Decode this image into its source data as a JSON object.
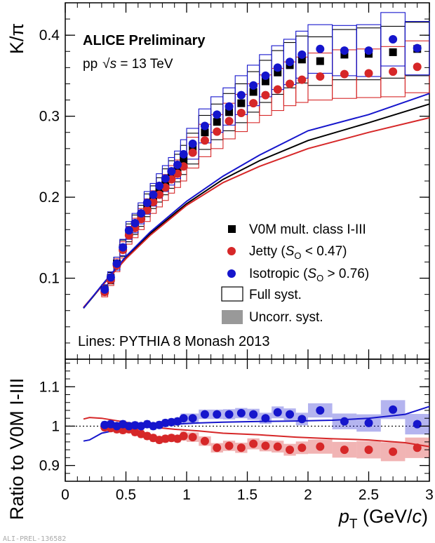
{
  "chart_data": [
    {
      "type": "scatter",
      "ylabel": "K/π",
      "xlim": [
        0,
        3
      ],
      "ylim": [
        0,
        0.44
      ],
      "y_ticks": [
        "0.1",
        "0.2",
        "0.3",
        "0.4"
      ],
      "annotations": {
        "title": "ALICE Preliminary",
        "energy_prefix": "pp",
        "energy_sym": "√",
        "energy_s": "s",
        "energy_value": " = 13 TeV",
        "lines_note": "Lines: PYTHIA 8 Monash 2013"
      },
      "legend": {
        "v0m": "V0M mult. class I-III",
        "jetty_a": "Jetty (",
        "jetty_s": "S",
        "jetty_sub": "O",
        "jetty_b": " < 0.47)",
        "iso_a": "Isotropic (",
        "iso_s": "S",
        "iso_sub": "O",
        "iso_b": " > 0.76)",
        "full_syst": "Full syst.",
        "uncorr_syst": "Uncorr. syst."
      },
      "colors": {
        "v0m": "#000000",
        "jetty": "#d62728",
        "isotropic": "#1515cc",
        "uncorr_box": "#999999"
      },
      "x": [
        0.325,
        0.375,
        0.425,
        0.475,
        0.525,
        0.575,
        0.625,
        0.675,
        0.725,
        0.775,
        0.825,
        0.875,
        0.925,
        0.975,
        1.05,
        1.15,
        1.25,
        1.35,
        1.45,
        1.55,
        1.65,
        1.75,
        1.85,
        1.95,
        2.1,
        2.3,
        2.5,
        2.7,
        2.9
      ],
      "x_bin_edges": [
        0.3,
        0.35,
        0.4,
        0.45,
        0.5,
        0.55,
        0.6,
        0.65,
        0.7,
        0.75,
        0.8,
        0.85,
        0.9,
        0.95,
        1.0,
        1.1,
        1.2,
        1.3,
        1.4,
        1.5,
        1.6,
        1.7,
        1.8,
        1.9,
        2.0,
        2.2,
        2.4,
        2.6,
        2.8,
        3.0
      ],
      "series": [
        {
          "name": "V0M mult. class I-III",
          "marker": "square",
          "values": [
            0.085,
            0.1,
            0.118,
            0.137,
            0.156,
            0.166,
            0.177,
            0.19,
            0.2,
            0.209,
            0.219,
            0.228,
            0.236,
            0.246,
            0.26,
            0.28,
            0.293,
            0.305,
            0.316,
            0.33,
            0.343,
            0.354,
            0.363,
            0.37,
            0.368,
            0.376,
            0.377,
            0.379,
            0.383
          ],
          "syst_full": [
            0.006,
            0.007,
            0.008,
            0.01,
            0.011,
            0.012,
            0.013,
            0.014,
            0.014,
            0.015,
            0.016,
            0.017,
            0.017,
            0.018,
            0.019,
            0.021,
            0.022,
            0.023,
            0.024,
            0.025,
            0.026,
            0.027,
            0.028,
            0.029,
            0.03,
            0.031,
            0.032,
            0.032,
            0.033
          ]
        },
        {
          "name": "Jetty (SO < 0.47)",
          "marker": "circle",
          "values": [
            0.083,
            0.098,
            0.116,
            0.135,
            0.153,
            0.162,
            0.173,
            0.184,
            0.194,
            0.203,
            0.212,
            0.222,
            0.229,
            0.238,
            0.255,
            0.27,
            0.281,
            0.294,
            0.304,
            0.316,
            0.326,
            0.333,
            0.34,
            0.345,
            0.349,
            0.352,
            0.353,
            0.355,
            0.361
          ],
          "syst_full": [
            0.006,
            0.007,
            0.008,
            0.01,
            0.011,
            0.012,
            0.013,
            0.014,
            0.014,
            0.015,
            0.016,
            0.017,
            0.017,
            0.018,
            0.019,
            0.02,
            0.021,
            0.022,
            0.023,
            0.024,
            0.025,
            0.026,
            0.027,
            0.028,
            0.029,
            0.03,
            0.03,
            0.031,
            0.032
          ]
        },
        {
          "name": "Isotropic (SO > 0.76)",
          "marker": "circle",
          "values": [
            0.086,
            0.101,
            0.118,
            0.138,
            0.159,
            0.168,
            0.18,
            0.193,
            0.203,
            0.214,
            0.223,
            0.232,
            0.24,
            0.253,
            0.266,
            0.288,
            0.302,
            0.312,
            0.326,
            0.338,
            0.35,
            0.36,
            0.367,
            0.376,
            0.383,
            0.381,
            0.381,
            0.395,
            0.384
          ],
          "syst_full": [
            0.006,
            0.007,
            0.008,
            0.01,
            0.011,
            0.012,
            0.013,
            0.014,
            0.014,
            0.015,
            0.016,
            0.017,
            0.017,
            0.018,
            0.019,
            0.021,
            0.022,
            0.023,
            0.024,
            0.025,
            0.026,
            0.027,
            0.028,
            0.029,
            0.03,
            0.031,
            0.032,
            0.033,
            0.033
          ]
        }
      ],
      "pythia_lines": {
        "x": [
          0.15,
          0.3,
          0.5,
          0.7,
          1.0,
          1.3,
          1.6,
          2.0,
          2.5,
          3.0
        ],
        "v0m": [
          0.063,
          0.09,
          0.125,
          0.155,
          0.192,
          0.222,
          0.245,
          0.27,
          0.292,
          0.315
        ],
        "jetty": [
          0.064,
          0.09,
          0.124,
          0.153,
          0.19,
          0.218,
          0.238,
          0.26,
          0.28,
          0.298
        ],
        "isotropic": [
          0.063,
          0.091,
          0.127,
          0.157,
          0.195,
          0.226,
          0.252,
          0.282,
          0.302,
          0.328
        ]
      }
    },
    {
      "type": "scatter",
      "ylabel": "Ratio to V0M I-III",
      "xlabel_p": "p",
      "xlabel_sub": "T",
      "xlabel_unit_a": " (GeV/",
      "xlabel_unit_c": "c",
      "xlabel_unit_b": ")",
      "xlim": [
        0,
        3
      ],
      "ylim": [
        0.86,
        1.17
      ],
      "y_ticks": [
        "0.9",
        "1",
        "1.1"
      ],
      "x_ticks": [
        "0",
        "0.5",
        "1",
        "1.5",
        "2",
        "2.5",
        "3"
      ],
      "x": [
        0.325,
        0.375,
        0.425,
        0.475,
        0.525,
        0.575,
        0.625,
        0.675,
        0.725,
        0.775,
        0.825,
        0.875,
        0.925,
        0.975,
        1.05,
        1.15,
        1.25,
        1.35,
        1.45,
        1.55,
        1.65,
        1.75,
        1.85,
        1.95,
        2.1,
        2.3,
        2.5,
        2.7,
        2.9
      ],
      "series": [
        {
          "name": "Jetty (SO < 0.47)",
          "values": [
            0.997,
            0.995,
            0.992,
            0.99,
            0.992,
            0.985,
            0.98,
            0.975,
            0.97,
            0.965,
            0.968,
            0.97,
            0.968,
            0.975,
            0.972,
            0.962,
            0.945,
            0.95,
            0.945,
            0.955,
            0.95,
            0.948,
            0.94,
            0.945,
            0.948,
            0.94,
            0.94,
            0.935,
            0.945
          ],
          "uncorr": [
            0.01,
            0.01,
            0.01,
            0.01,
            0.01,
            0.01,
            0.01,
            0.01,
            0.01,
            0.01,
            0.01,
            0.01,
            0.01,
            0.012,
            0.012,
            0.012,
            0.012,
            0.013,
            0.013,
            0.014,
            0.014,
            0.015,
            0.015,
            0.016,
            0.018,
            0.02,
            0.022,
            0.024,
            0.026
          ]
        },
        {
          "name": "Isotropic (SO > 0.76)",
          "values": [
            1.003,
            1.005,
            1.0,
            1.005,
            1.0,
            1.002,
            1.0,
            1.005,
            1.0,
            1.003,
            1.008,
            1.01,
            1.012,
            1.02,
            1.02,
            1.03,
            1.03,
            1.03,
            1.033,
            1.03,
            1.02,
            1.035,
            1.03,
            1.018,
            1.04,
            1.012,
            1.008,
            1.042,
            1.005
          ],
          "uncorr": [
            0.01,
            0.01,
            0.01,
            0.01,
            0.01,
            0.01,
            0.01,
            0.01,
            0.01,
            0.01,
            0.01,
            0.01,
            0.01,
            0.012,
            0.012,
            0.012,
            0.012,
            0.013,
            0.013,
            0.014,
            0.014,
            0.015,
            0.015,
            0.016,
            0.018,
            0.02,
            0.022,
            0.024,
            0.026
          ]
        }
      ],
      "pythia_ratio_lines": {
        "x": [
          0.15,
          0.2,
          0.3,
          0.5,
          0.7,
          0.9,
          1.1,
          1.3,
          1.6,
          1.9,
          2.2,
          2.5,
          2.8,
          3.0
        ],
        "jetty": [
          1.018,
          1.022,
          1.02,
          1.01,
          0.998,
          0.992,
          0.988,
          0.982,
          0.978,
          0.972,
          0.968,
          0.965,
          0.958,
          0.948
        ],
        "isotropic": [
          0.962,
          0.965,
          0.982,
          0.995,
          1.0,
          1.005,
          1.008,
          1.01,
          1.012,
          1.013,
          1.015,
          1.02,
          1.03,
          1.05
        ]
      }
    }
  ],
  "watermark": "ALI-PREL-136582"
}
